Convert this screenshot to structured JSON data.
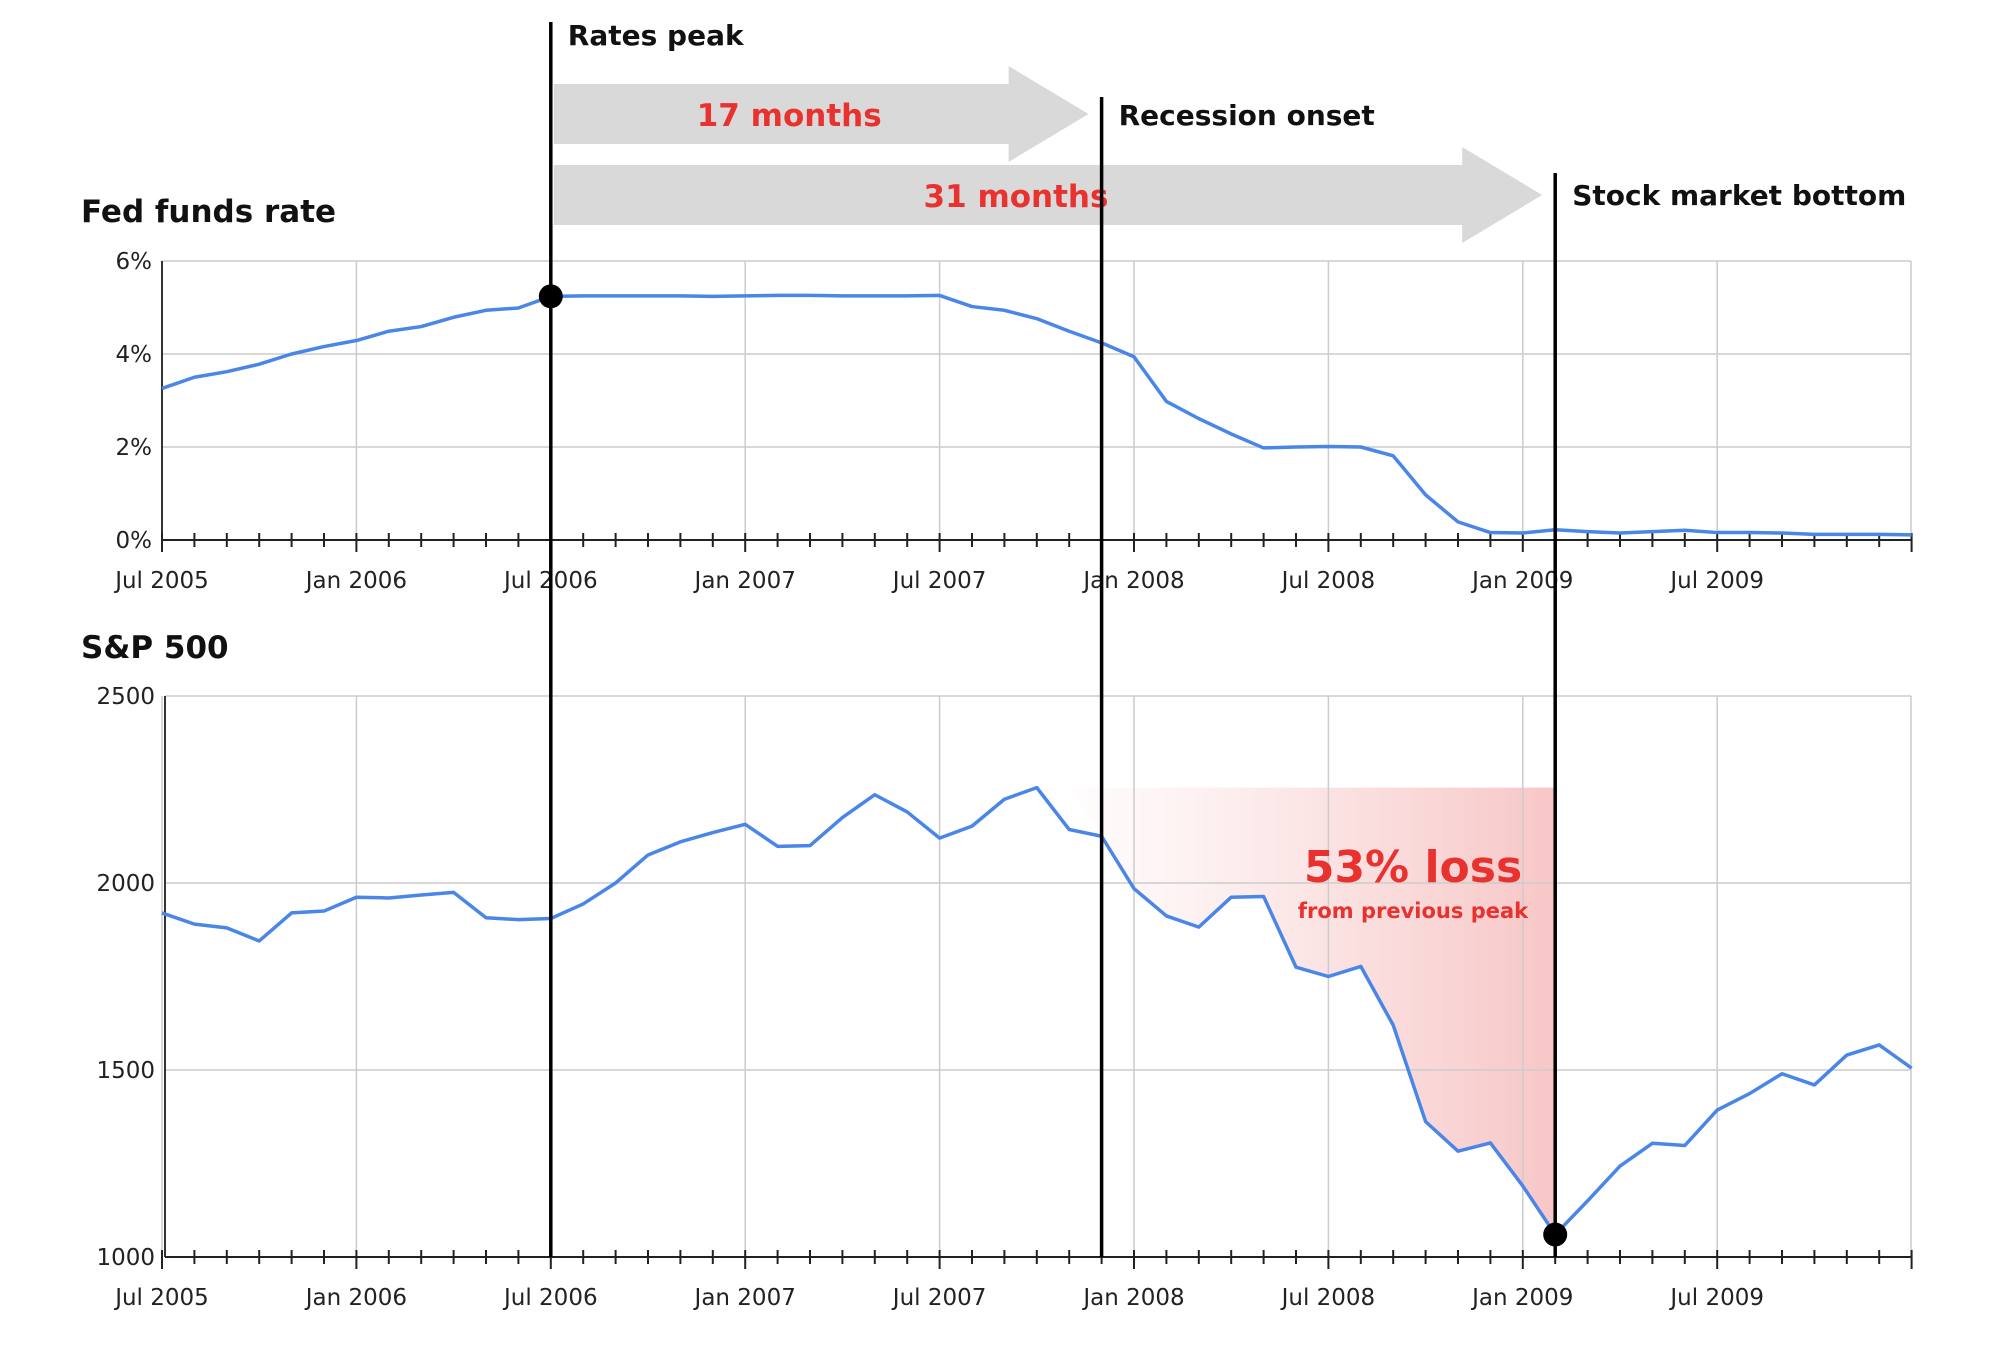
{
  "chart_data": [
    {
      "type": "line",
      "title": "Fed funds rate",
      "ylim": [
        0,
        6
      ],
      "yticks": [
        "0%",
        "2%",
        "4%",
        "6%"
      ],
      "ytick_values": [
        0,
        2,
        4,
        6
      ],
      "xticks": [
        "Jul 2005",
        "Jan 2006",
        "Jul 2006",
        "Jan 2007",
        "Jul 2007",
        "Jan 2008",
        "Jul 2008",
        "Jan 2009",
        "Jul 2009"
      ],
      "grid": true,
      "color": "#4a86e8",
      "x": [
        "2005-07",
        "2005-08",
        "2005-09",
        "2005-10",
        "2005-11",
        "2005-12",
        "2006-01",
        "2006-02",
        "2006-03",
        "2006-04",
        "2006-05",
        "2006-06",
        "2006-07",
        "2006-08",
        "2006-09",
        "2006-10",
        "2006-11",
        "2006-12",
        "2007-01",
        "2007-02",
        "2007-03",
        "2007-04",
        "2007-05",
        "2007-06",
        "2007-07",
        "2007-08",
        "2007-09",
        "2007-10",
        "2007-11",
        "2007-12",
        "2008-01",
        "2008-02",
        "2008-03",
        "2008-04",
        "2008-05",
        "2008-06",
        "2008-07",
        "2008-08",
        "2008-09",
        "2008-10",
        "2008-11",
        "2008-12",
        "2009-01",
        "2009-02",
        "2009-03",
        "2009-04",
        "2009-05",
        "2009-06",
        "2009-07",
        "2009-08",
        "2009-09",
        "2009-10",
        "2009-11",
        "2009-12",
        "2010-01"
      ],
      "y": [
        3.26,
        3.5,
        3.62,
        3.78,
        4.0,
        4.16,
        4.29,
        4.49,
        4.59,
        4.79,
        4.94,
        4.99,
        5.24,
        5.25,
        5.25,
        5.25,
        5.25,
        5.24,
        5.25,
        5.26,
        5.26,
        5.25,
        5.25,
        5.25,
        5.26,
        5.02,
        4.94,
        4.76,
        4.49,
        4.24,
        3.94,
        2.98,
        2.61,
        2.28,
        1.98,
        2.0,
        2.01,
        2.0,
        1.81,
        0.97,
        0.39,
        0.16,
        0.15,
        0.22,
        0.18,
        0.15,
        0.18,
        0.21,
        0.16,
        0.16,
        0.15,
        0.12,
        0.12,
        0.12,
        0.11
      ],
      "highlight": {
        "x": "2006-07",
        "y": 5.24
      }
    },
    {
      "type": "line",
      "title": "S&P 500",
      "ylim": [
        1000,
        2500
      ],
      "yticks": [
        "1000",
        "1500",
        "2000",
        "2500"
      ],
      "ytick_values": [
        1000,
        1500,
        2000,
        2500
      ],
      "xticks": [
        "Jul 2005",
        "Jan 2006",
        "Jul 2006",
        "Jan 2007",
        "Jul 2007",
        "Jan 2008",
        "Jul 2008",
        "Jan 2009",
        "Jul 2009"
      ],
      "grid": true,
      "color": "#4a86e8",
      "x": [
        "2005-07",
        "2005-08",
        "2005-09",
        "2005-10",
        "2005-11",
        "2005-12",
        "2006-01",
        "2006-02",
        "2006-03",
        "2006-04",
        "2006-05",
        "2006-06",
        "2006-07",
        "2006-08",
        "2006-09",
        "2006-10",
        "2006-11",
        "2006-12",
        "2007-01",
        "2007-02",
        "2007-03",
        "2007-04",
        "2007-05",
        "2007-06",
        "2007-07",
        "2007-08",
        "2007-09",
        "2007-10",
        "2007-11",
        "2007-12",
        "2008-01",
        "2008-02",
        "2008-03",
        "2008-04",
        "2008-05",
        "2008-06",
        "2008-07",
        "2008-08",
        "2008-09",
        "2008-10",
        "2008-11",
        "2008-12",
        "2009-01",
        "2009-02",
        "2009-03",
        "2009-04",
        "2009-05",
        "2009-06",
        "2009-07",
        "2009-08",
        "2009-09",
        "2009-10",
        "2009-11",
        "2009-12",
        "2010-01"
      ],
      "y": [
        1920,
        1890,
        1880,
        1845,
        1920,
        1925,
        1962,
        1960,
        1968,
        1975,
        1907,
        1902,
        1905,
        1944,
        2000,
        2075,
        2110,
        2135,
        2157,
        2098,
        2100,
        2175,
        2236,
        2190,
        2120,
        2152,
        2224,
        2255,
        2143,
        2125,
        1985,
        1912,
        1882,
        1962,
        1964,
        1775,
        1750,
        1777,
        1620,
        1362,
        1283,
        1305,
        1190,
        1060,
        1150,
        1243,
        1304,
        1298,
        1393,
        1437,
        1490,
        1460,
        1540,
        1567,
        1505
      ],
      "highlight": {
        "x": "2009-02",
        "y": 1060
      },
      "shaded_drawdown": {
        "peak": 2255,
        "start": "2007-12",
        "end": "2009-02"
      },
      "annotation": {
        "value": "53% loss",
        "subtext": "from previous peak"
      }
    }
  ],
  "events": [
    {
      "label": "Rates peak",
      "x": "2006-07"
    },
    {
      "label": "Recession onset",
      "x": "2007-12"
    },
    {
      "label": "Stock market bottom",
      "x": "2009-02"
    }
  ],
  "intervals": [
    {
      "label": "17 months",
      "from": "2006-07",
      "to": "2007-12"
    },
    {
      "label": "31 months",
      "from": "2006-07",
      "to": "2009-02"
    }
  ]
}
